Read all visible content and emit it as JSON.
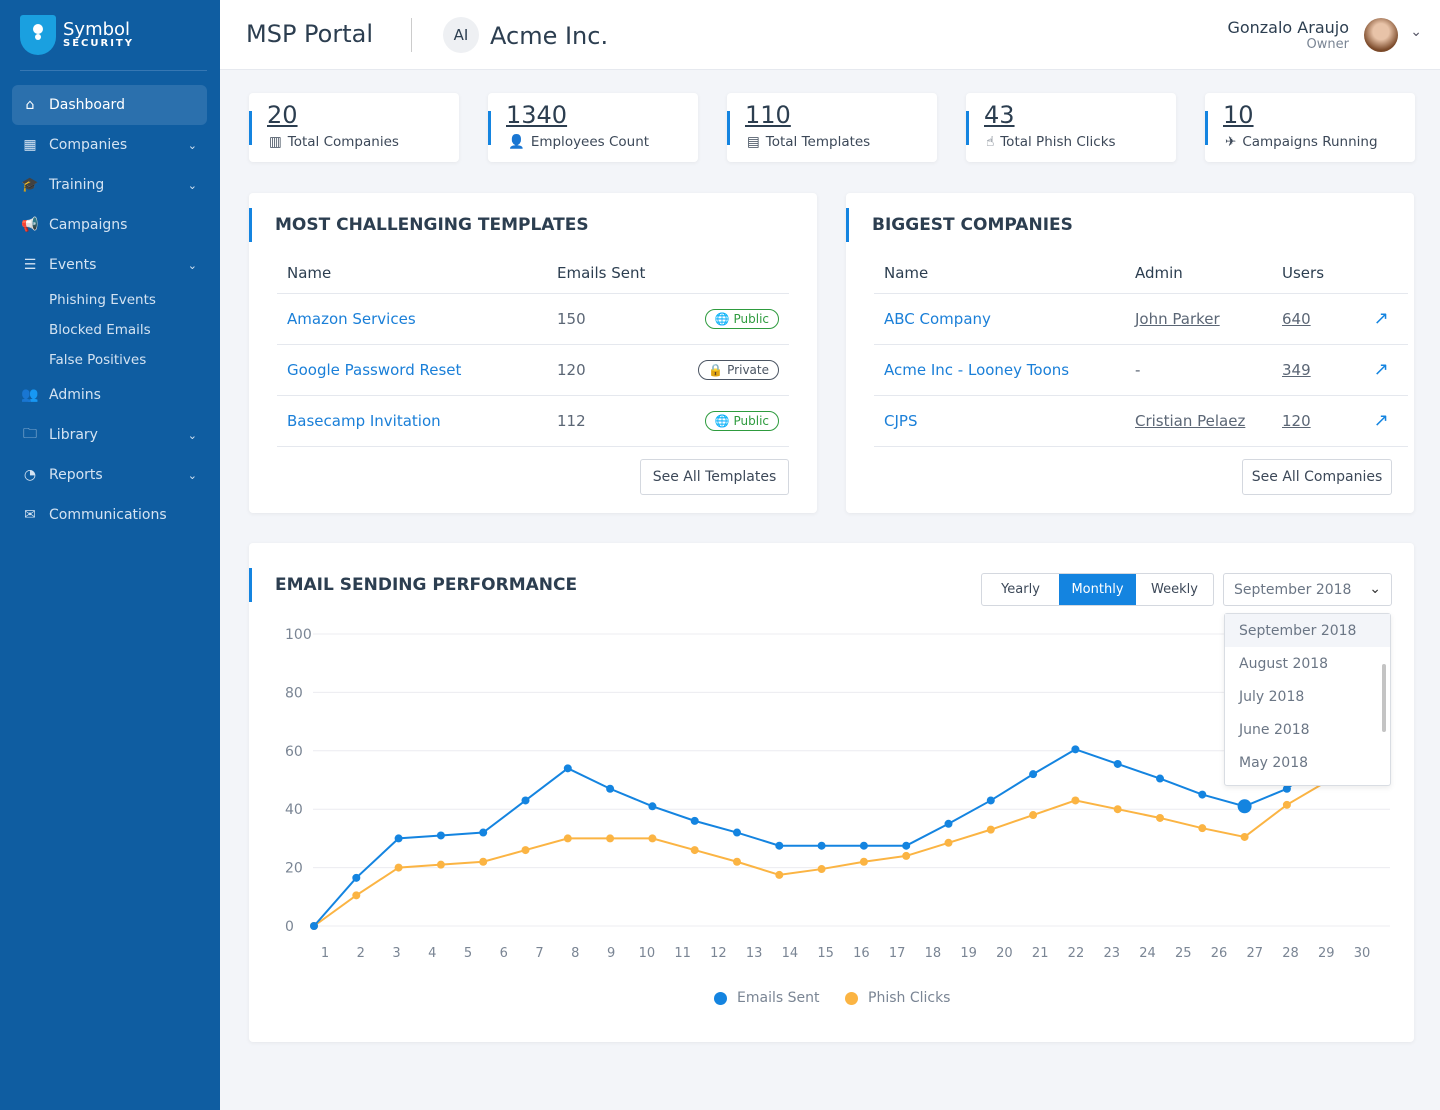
{
  "brand": {
    "name": "Symbol",
    "sub": "SECURITY"
  },
  "sidebar": {
    "items": [
      {
        "label": "Dashboard",
        "icon": "⌂",
        "active": true
      },
      {
        "label": "Companies",
        "icon": "▦",
        "chev": true
      },
      {
        "label": "Training",
        "icon": "🎓",
        "chev": true
      },
      {
        "label": "Campaigns",
        "icon": "📢"
      },
      {
        "label": "Events",
        "icon": "☰",
        "chev": true,
        "subs": [
          "Phishing Events",
          "Blocked Emails",
          "False Positives"
        ]
      },
      {
        "label": "Admins",
        "icon": "👥"
      },
      {
        "label": "Library",
        "icon": "🗀",
        "chev": true
      },
      {
        "label": "Reports",
        "icon": "◔",
        "chev": true
      },
      {
        "label": "Communications",
        "icon": "✉"
      }
    ]
  },
  "header": {
    "title": "MSP Portal",
    "company_initials": "AI",
    "company": "Acme Inc.",
    "user_name": "Gonzalo Araujo",
    "user_role": "Owner"
  },
  "stats": [
    {
      "value": "20",
      "label": "Total Companies",
      "icon": "▥"
    },
    {
      "value": "1340",
      "label": "Employees Count",
      "icon": "👤"
    },
    {
      "value": "110",
      "label": "Total Templates",
      "icon": "▤"
    },
    {
      "value": "43",
      "label": "Total Phish Clicks",
      "icon": "☝"
    },
    {
      "value": "10",
      "label": "Campaigns Running",
      "icon": "✈"
    }
  ],
  "templates": {
    "title": "MOST CHALLENGING TEMPLATES",
    "headers": [
      "Name",
      "Emails Sent"
    ],
    "rows": [
      {
        "name": "Amazon Services",
        "sent": "150",
        "badge": "Public",
        "type": "pub"
      },
      {
        "name": "Google Password Reset",
        "sent": "120",
        "badge": "Private",
        "type": "pri"
      },
      {
        "name": "Basecamp Invitation",
        "sent": "112",
        "badge": "Public",
        "type": "pub"
      }
    ],
    "button": "See All Templates"
  },
  "companies": {
    "title": "BIGGEST COMPANIES",
    "headers": [
      "Name",
      "Admin",
      "Users"
    ],
    "rows": [
      {
        "name": "ABC Company",
        "admin": "John Parker",
        "users": "640"
      },
      {
        "name": "Acme Inc - Looney Toons",
        "admin": "-",
        "users": "349"
      },
      {
        "name": "CJPS",
        "admin": "Cristian Pelaez",
        "users": "120"
      }
    ],
    "button": "See All Companies"
  },
  "performance": {
    "title": "EMAIL SENDING PERFORMANCE",
    "periods": [
      "Yearly",
      "Monthly",
      "Weekly"
    ],
    "active_period": "Monthly",
    "selected": "September 2018",
    "options": [
      "September 2018",
      "August 2018",
      "July 2018",
      "June 2018",
      "May 2018"
    ]
  },
  "chart_data": {
    "type": "line",
    "ylim": [
      0,
      100
    ],
    "yticks": [
      0,
      20,
      40,
      60,
      80,
      100
    ],
    "xticks": [
      "1",
      "2",
      "3",
      "4",
      "5",
      "6",
      "7",
      "8",
      "9",
      "10",
      "11",
      "12",
      "13",
      "14",
      "15",
      "16",
      "17",
      "18",
      "19",
      "20",
      "21",
      "22",
      "23",
      "24",
      "25",
      "26",
      "27",
      "28",
      "29",
      "30"
    ],
    "series": [
      {
        "name": "Emails Sent",
        "color": "#1484e0",
        "values": [
          0,
          16.5,
          30,
          31,
          32,
          43,
          54,
          47,
          41,
          36,
          32,
          27.5,
          27.5,
          27.5,
          27.5,
          35,
          43,
          52,
          60.5,
          55.5,
          50.5,
          45,
          41,
          47,
          58,
          68
        ]
      },
      {
        "name": "Phish Clicks",
        "color": "#fbb443",
        "values": [
          0,
          10.5,
          20,
          21,
          22,
          26,
          30,
          30,
          30,
          26,
          22,
          17.5,
          19.5,
          22,
          24,
          28.5,
          33,
          38,
          43,
          40,
          37,
          33.5,
          30.5,
          41.5,
          50,
          58
        ]
      }
    ],
    "highlight_index": 22,
    "legend": "bottom",
    "grid": true
  }
}
